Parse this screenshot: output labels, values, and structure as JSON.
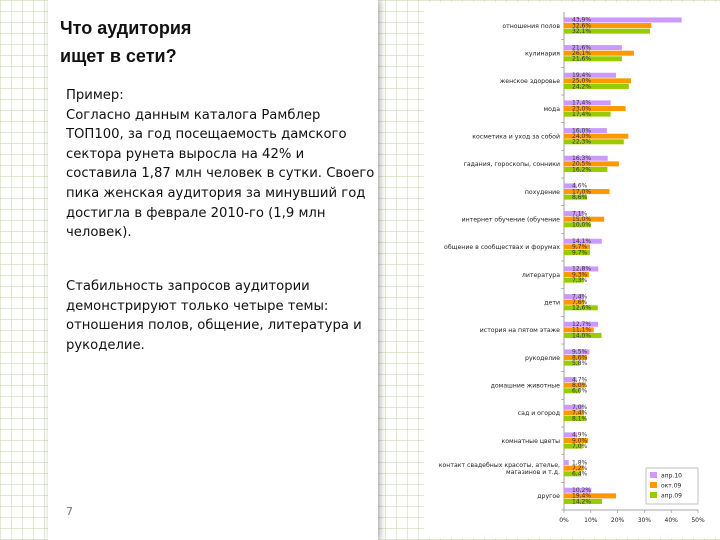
{
  "slide": {
    "title_line1": "Что аудитория",
    "title_line2": "ищет в сети?",
    "para1": "Пример:\nСогласно данным каталога Рамблер ТОП100, за год посещаемость дамского сектора рунета выросла на 42% и составила 1,87 млн человек в сутки. Своего пика женская аудитория за минувший год достигла в феврале 2010-го (1,9 млн человек).",
    "para2": "Стабильность запросов аудитории демонстрируют только четыре темы: отношения полов, общение, литература и рукоделие.",
    "page_number": "7"
  },
  "colors": {
    "series1": "#cc99ff",
    "series2": "#ff9900",
    "series3": "#99cc00"
  },
  "chart_data": {
    "type": "bar",
    "orientation": "horizontal",
    "xlim": [
      0,
      50
    ],
    "xticks": [
      "0%",
      "10%",
      "20%",
      "30%",
      "40%",
      "50%"
    ],
    "legend_position": "bottom-right",
    "categories": [
      "отношения полов",
      "кулинария",
      "женское здоровье",
      "мода",
      "косметика и уход за собой",
      "гадания, гороскопы, сонники",
      "похудение",
      "интернет обучение (обучение",
      "общение в сообществах и форумах",
      "литература",
      "дети",
      "история на пятом этаже",
      "рукоделие",
      "домашние животные",
      "сад и огород",
      "комнатные цветы",
      "контакт свадебных красоты, ателье, магазинов и т.д.",
      "другое"
    ],
    "series": [
      {
        "name": "апр.10",
        "values": [
          43.9,
          21.6,
          19.4,
          17.4,
          16.0,
          16.3,
          4.6,
          7.1,
          14.1,
          12.8,
          7.4,
          12.7,
          9.5,
          4.7,
          7.0,
          4.9,
          1.8,
          10.2
        ]
      },
      {
        "name": "окт.09",
        "values": [
          32.6,
          26.1,
          25.0,
          23.0,
          24.0,
          20.5,
          17.0,
          15.0,
          9.7,
          9.3,
          7.6,
          11.1,
          8.6,
          8.0,
          7.4,
          9.0,
          7.2,
          19.4
        ]
      },
      {
        "name": "апр.09",
        "values": [
          32.1,
          21.6,
          24.2,
          17.4,
          22.3,
          16.2,
          8.6,
          10.0,
          9.7,
          7.3,
          12.6,
          14.0,
          5.8,
          6.0,
          8.1,
          7.0,
          6.4,
          14.2
        ]
      }
    ],
    "value_labels": [
      [
        "43,9%",
        "32,6%",
        "32,1%"
      ],
      [
        "21,6%",
        "26,1%",
        "21,6%"
      ],
      [
        "19,4%",
        "25,0%",
        "24,2%"
      ],
      [
        "17,4%",
        "23,0%",
        "17,4%"
      ],
      [
        "16,0%",
        "24,0%",
        "22,3%"
      ],
      [
        "16,3%",
        "20,5%",
        "16,2%"
      ],
      [
        "4,6%",
        "17,0%",
        "8,6%"
      ],
      [
        "7,1%",
        "15,0%",
        "10,0%"
      ],
      [
        "14,1%",
        "9,7%",
        "9,7%"
      ],
      [
        "12,8%",
        "9,3%",
        "7,3%"
      ],
      [
        "7,4%",
        "7,6%",
        "12,6%"
      ],
      [
        "12,7%",
        "11,1%",
        "14,0%"
      ],
      [
        "9,5%",
        "8,6%",
        "5,8%"
      ],
      [
        "4,7%",
        "8,0%",
        "6,0%"
      ],
      [
        "7,0%",
        "7,4%",
        "8,1%"
      ],
      [
        "4,9%",
        "9,0%",
        "7,0%"
      ],
      [
        "1,8%",
        "7,2%",
        "6,4%"
      ],
      [
        "10,2%",
        "19,4%",
        "14,2%"
      ]
    ]
  }
}
